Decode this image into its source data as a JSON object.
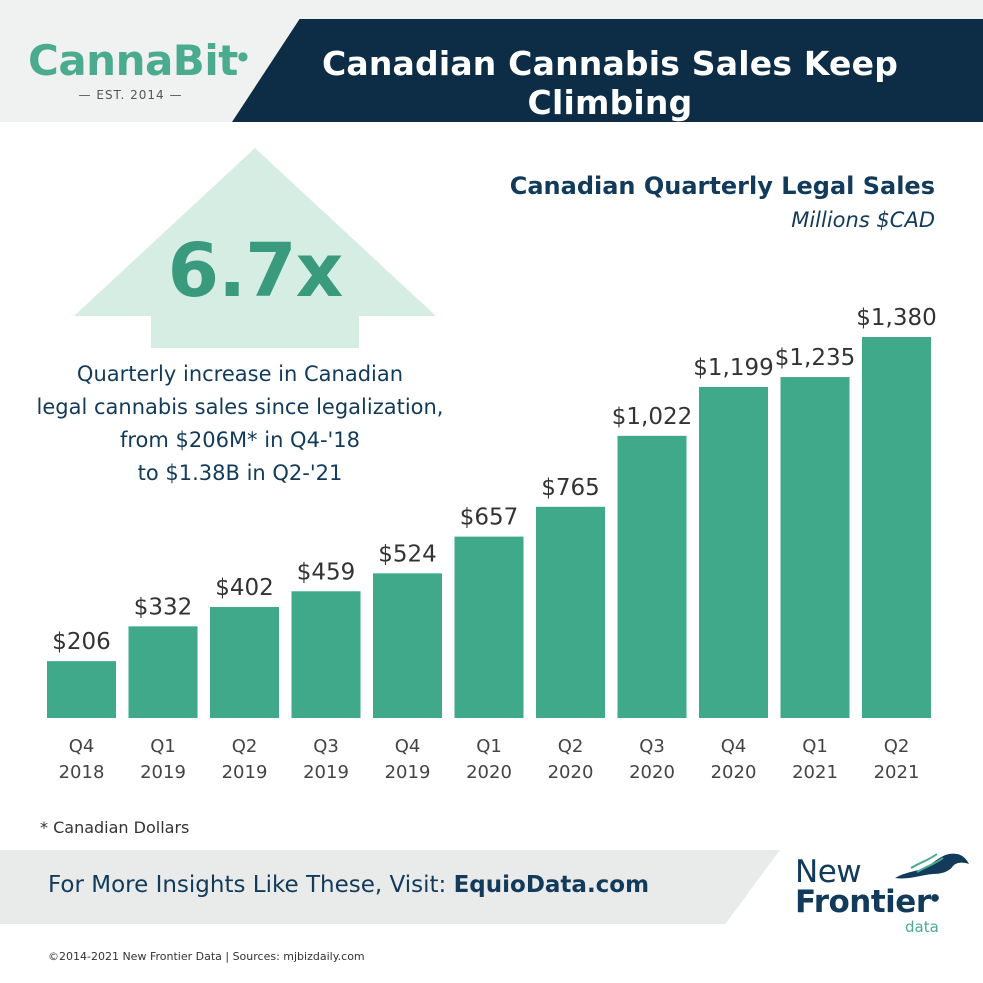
{
  "header": {
    "logo_name": "CannaBit",
    "logo_est": "— EST. 2014 —",
    "title": "Canadian Cannabis Sales Keep Climbing"
  },
  "callout": {
    "big_value": "6.7x",
    "lines": [
      "Quarterly increase in Canadian",
      "legal cannabis sales since legalization,",
      "from $206M* in Q4-'18",
      "to $1.38B in Q2-'21"
    ]
  },
  "chart_data": {
    "type": "bar",
    "title": "Canadian Quarterly Legal Sales",
    "subtitle": "Millions $CAD",
    "categories": [
      [
        "Q4",
        "2018"
      ],
      [
        "Q1",
        "2019"
      ],
      [
        "Q2",
        "2019"
      ],
      [
        "Q3",
        "2019"
      ],
      [
        "Q4",
        "2019"
      ],
      [
        "Q1",
        "2020"
      ],
      [
        "Q2",
        "2020"
      ],
      [
        "Q3",
        "2020"
      ],
      [
        "Q4",
        "2020"
      ],
      [
        "Q1",
        "2021"
      ],
      [
        "Q2",
        "2021"
      ]
    ],
    "values": [
      206,
      332,
      402,
      459,
      524,
      657,
      765,
      1022,
      1199,
      1235,
      1380
    ],
    "data_labels": [
      "$206",
      "$332",
      "$402",
      "$459",
      "$524",
      "$657",
      "$765",
      "$1,022",
      "$1,199",
      "$1,235",
      "$1,380"
    ],
    "ylim": [
      0,
      1380
    ],
    "grid": false,
    "bar_color": "#3fa98a"
  },
  "footnote": "* Canadian Dollars",
  "cta": {
    "prefix": "For More Insights Like These, Visit: ",
    "url": "EquioData.com"
  },
  "brand": {
    "line1": "New",
    "line2": "Frontier",
    "line3": "data"
  },
  "copyright": "©2014-2021 New Frontier Data | Sources: mjbizdaily.com",
  "colors": {
    "navy": "#0d2c45",
    "accent_green": "#4aab8f",
    "arrow_green": "#d6ede4",
    "text_navy": "#123a5a"
  }
}
